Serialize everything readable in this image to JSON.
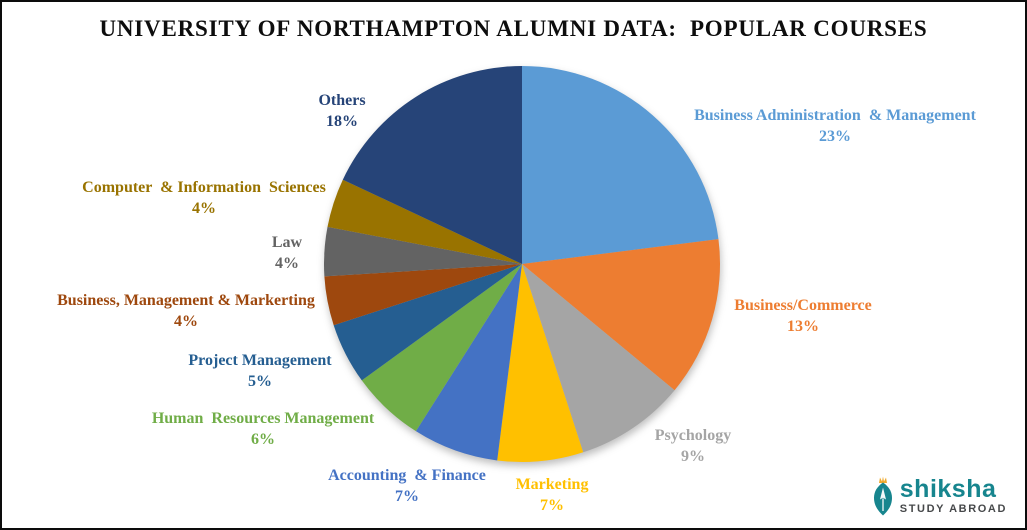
{
  "title": "UNIVERSITY OF NORTHAMPTON ALUMNI DATA:  POPULAR COURSES",
  "chart_data": {
    "type": "pie",
    "title": "UNIVERSITY OF NORTHAMPTON ALUMNI DATA: POPULAR COURSES",
    "start_angle_deg": 0,
    "direction": "clockwise",
    "legend": "none",
    "labels_position": "outside",
    "slices": [
      {
        "label": "Business Administration  & Management",
        "value": 23,
        "pct_label": "23%",
        "color": "#5B9BD5"
      },
      {
        "label": "Business/Commerce",
        "value": 13,
        "pct_label": "13%",
        "color": "#ED7D31"
      },
      {
        "label": "Psychology",
        "value": 9,
        "pct_label": "9%",
        "color": "#A5A5A5"
      },
      {
        "label": "Marketing",
        "value": 7,
        "pct_label": "7%",
        "color": "#FFC000"
      },
      {
        "label": "Accounting  & Finance",
        "value": 7,
        "pct_label": "7%",
        "color": "#4472C4"
      },
      {
        "label": "Human  Resources Management",
        "value": 6,
        "pct_label": "6%",
        "color": "#70AD47"
      },
      {
        "label": "Project Management",
        "value": 5,
        "pct_label": "5%",
        "color": "#255E91"
      },
      {
        "label": "Business, Management & Markerting",
        "value": 4,
        "pct_label": "4%",
        "color": "#9E480E"
      },
      {
        "label": "Law",
        "value": 4,
        "pct_label": "4%",
        "color": "#636363"
      },
      {
        "label": "Computer  & Information  Sciences",
        "value": 4,
        "pct_label": "4%",
        "color": "#997300"
      },
      {
        "label": "Others",
        "value": 18,
        "pct_label": "18%",
        "color": "#264478"
      }
    ]
  },
  "logo": {
    "brand": "shiksha",
    "tagline": "STUDY ABROAD",
    "brand_color": "#17858E",
    "tagline_color": "#46484A",
    "icon": "pen-nib-icon",
    "icon_accent_color": "#EFA92D"
  }
}
